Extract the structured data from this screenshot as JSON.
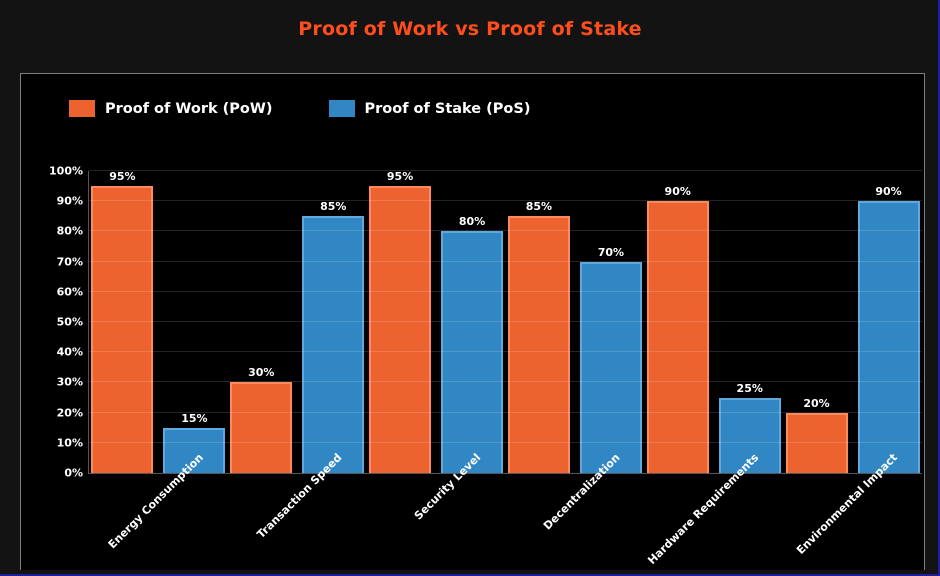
{
  "page": {
    "background": "#131313",
    "panel_background": "#000000",
    "panel_border_color": "#7e7e7e",
    "edge_color": "#1e1e96"
  },
  "title": {
    "text": "Proof of Work vs Proof of Stake",
    "color": "#ff4e1d"
  },
  "legend": [
    {
      "label": "Proof of Work (PoW)",
      "color": "#ed6330"
    },
    {
      "label": "Proof of Stake (PoS)",
      "color": "#3187c4"
    }
  ],
  "chart_data": {
    "type": "bar",
    "title": "Proof of Work vs Proof of Stake",
    "categories": [
      "Energy Consumption",
      "Transaction Speed",
      "Security Level",
      "Decentralization",
      "Hardware Requirements",
      "Environmental Impact"
    ],
    "series": [
      {
        "name": "Proof of Work (PoW)",
        "color": "#ed6330",
        "border_color": "#ff8a5e",
        "values": [
          95,
          30,
          95,
          85,
          90,
          20
        ]
      },
      {
        "name": "Proof of Stake (PoS)",
        "color": "#3187c4",
        "border_color": "#61a8dc",
        "values": [
          15,
          85,
          80,
          70,
          25,
          90
        ]
      }
    ],
    "value_labels": [
      "95%",
      "30%",
      "95%",
      "85%",
      "90%",
      "20%",
      "15%",
      "85%",
      "80%",
      "70%",
      "25%",
      "90%"
    ],
    "y_ticks": [
      "100%",
      "90%",
      "80%",
      "70%",
      "60%",
      "50%",
      "40%",
      "30%",
      "20%",
      "10%",
      "0%"
    ],
    "ylim": [
      0,
      100
    ],
    "value_label_format": "percent",
    "grid": true,
    "grid_color": "rgba(255,255,255,0.14)",
    "legend_position": "top-left",
    "xlabel": "",
    "ylabel": ""
  }
}
